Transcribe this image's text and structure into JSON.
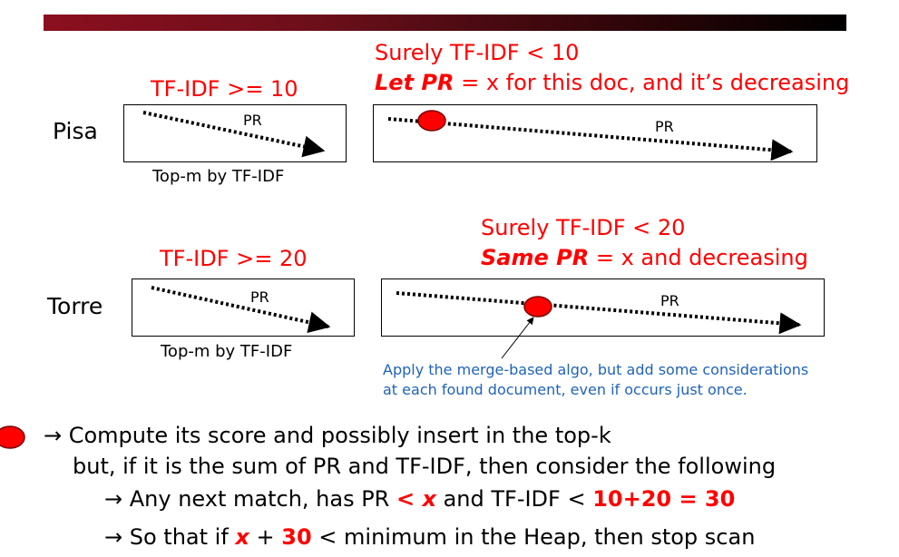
{
  "pisa": {
    "label": "Pisa",
    "left_heading": "TF-IDF >= 10",
    "caption": "Top-m by TF-IDF",
    "pr_left": "PR",
    "right_heading_1": "Surely TF-IDF < 10",
    "right_heading_2_em": "Let PR",
    "right_heading_2_rest": " = x for this doc, and it’s decreasing",
    "pr_right": "PR"
  },
  "torre": {
    "label": "Torre",
    "left_heading": "TF-IDF >= 20",
    "caption": "Top-m by TF-IDF",
    "pr_left": "PR",
    "right_heading_1": "Surely TF-IDF < 20",
    "right_heading_2_em": "Same PR",
    "right_heading_2_rest": " = x and decreasing",
    "pr_right": "PR"
  },
  "note": {
    "line1": "Apply the merge-based algo, but add some considerations",
    "line2": "at each found document, even if occurs just once."
  },
  "bullets": {
    "l1": "→ Compute its score and possibly insert in the top-k",
    "l2": "but, if it is the sum of PR and TF-IDF, then consider the following",
    "l3_a": "→ Any next match, has PR ",
    "l3_b": "< x",
    "l3_c": " and TF-IDF < ",
    "l3_d": "10+20 = 30",
    "l4_a": "→ So that if ",
    "l4_b": "x",
    "l4_c": " + ",
    "l4_d": "30",
    "l4_e": " < minimum in the Heap, then stop scan"
  },
  "colors": {
    "accent": "#ff0000",
    "note": "#1f63b8",
    "bar": "#8b0f1f"
  }
}
